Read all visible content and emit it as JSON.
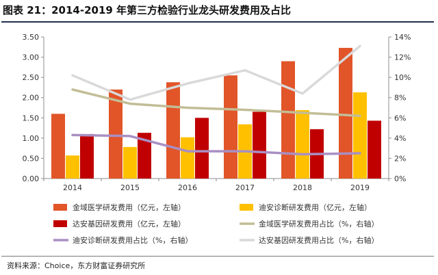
{
  "title": "图表 21：2014-2019 年第三方检验行业龙头研发费用及占比",
  "source": "资料来源：Choice，东方财富证券研究所",
  "chart_data": {
    "type": "bar",
    "categories": [
      "2014",
      "2015",
      "2016",
      "2017",
      "2018",
      "2019"
    ],
    "left_axis": {
      "ylim": [
        0,
        3.5
      ],
      "ticks": [
        "0.00",
        "0.50",
        "1.00",
        "1.50",
        "2.00",
        "2.50",
        "3.00",
        "3.50"
      ]
    },
    "right_axis": {
      "ylim": [
        0,
        14
      ],
      "ticks": [
        "0%",
        "2%",
        "4%",
        "6%",
        "8%",
        "10%",
        "12%",
        "14%"
      ]
    },
    "bar_series": [
      {
        "name": "金域医学研发费用（亿元，左轴）",
        "color": "#e15529",
        "values": [
          1.6,
          2.2,
          2.38,
          2.55,
          2.9,
          3.23
        ]
      },
      {
        "name": "迪安诊断研发费用（亿元，左轴）",
        "color": "#ffc000",
        "values": [
          0.57,
          0.78,
          1.02,
          1.34,
          1.69,
          2.13
        ]
      },
      {
        "name": "达安基因研发费用（亿元，左轴）",
        "color": "#c00000",
        "values": [
          1.1,
          1.13,
          1.5,
          1.65,
          1.22,
          1.43
        ]
      }
    ],
    "line_series": [
      {
        "name": "金域医学研发费用占比（%，右轴）",
        "color": "#c2bd96",
        "values": [
          8.8,
          7.4,
          7.0,
          6.8,
          6.5,
          6.2
        ]
      },
      {
        "name": "迪安诊断研发费用占比（%，右轴）",
        "color": "#a98fc4",
        "values": [
          4.3,
          4.2,
          2.7,
          2.7,
          2.4,
          2.5
        ]
      },
      {
        "name": "达安基因研发费用占比（%，右轴）",
        "color": "#d9d9d9",
        "values": [
          10.2,
          7.8,
          9.4,
          10.7,
          8.4,
          13.1
        ]
      }
    ],
    "legend": [
      {
        "series": "金域医学研发费用（亿元，左轴）",
        "kind": "bar",
        "color": "#e15529"
      },
      {
        "series": "迪安诊断研发费用（亿元，左轴）",
        "kind": "bar",
        "color": "#ffc000"
      },
      {
        "series": "达安基因研发费用（亿元，左轴）",
        "kind": "bar",
        "color": "#c00000"
      },
      {
        "series": "金域医学研发费用占比（%，右轴）",
        "kind": "line",
        "color": "#c2bd96"
      },
      {
        "series": "迪安诊断研发费用占比（%，右轴）",
        "kind": "line",
        "color": "#a98fc4"
      },
      {
        "series": "达安基因研发费用占比（%，右轴）",
        "kind": "line",
        "color": "#d9d9d9"
      }
    ],
    "grid": false,
    "legend_position": "bottom"
  }
}
